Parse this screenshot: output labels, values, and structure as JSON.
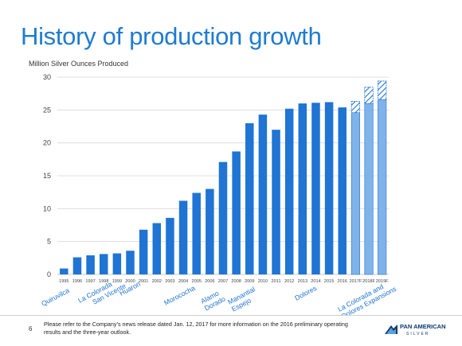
{
  "slide": {
    "title": "History of production growth",
    "page_number": "6",
    "footnote": "Please refer to the Company’s news release dated Jan. 12, 2017 for more information on the 2016 preliminary operating results and the three-year outlook."
  },
  "logo": {
    "name": "PAN AMERICAN",
    "sub": "SILVER",
    "mark_icon": "pan-american-logo-icon"
  },
  "chart_data": {
    "type": "bar",
    "ylabel": "Million Silver Ounces Produced",
    "ylim": [
      0,
      30
    ],
    "yticks": [
      0,
      5,
      10,
      15,
      20,
      25,
      30
    ],
    "grid": true,
    "categories": [
      "1995",
      "1996",
      "1997",
      "1998",
      "1999",
      "2000",
      "2001",
      "2002",
      "2003",
      "2004",
      "2005",
      "2006",
      "2007",
      "2008",
      "2009",
      "2010",
      "2011",
      "2012",
      "2013",
      "2014",
      "2015",
      "2016",
      "2017F",
      "2018F",
      "2019F"
    ],
    "values": [
      0.9,
      2.6,
      2.9,
      3.1,
      3.2,
      3.6,
      6.8,
      7.8,
      8.6,
      11.2,
      12.4,
      13.0,
      17.1,
      18.7,
      23.0,
      24.3,
      22.0,
      25.2,
      26.0,
      26.1,
      26.2,
      25.4,
      24.6,
      26.0,
      26.6
    ],
    "forecast_range_top": [
      null,
      null,
      null,
      null,
      null,
      null,
      null,
      null,
      null,
      null,
      null,
      null,
      null,
      null,
      null,
      null,
      null,
      null,
      null,
      null,
      null,
      null,
      26.3,
      28.5,
      29.4
    ],
    "forecast_categories": [
      "2017F",
      "2018F",
      "2019F"
    ],
    "colors": {
      "actual": "#1f74d4",
      "forecast": "#7fb3ea",
      "range_hatch": "#1f74d4"
    },
    "annotations": [
      {
        "text": "Quiruvilca",
        "year": "1996"
      },
      {
        "text": "La Colorada",
        "year": "1998"
      },
      {
        "text": "San Vicente",
        "year": "1999"
      },
      {
        "text": "Huaron",
        "year": "2000"
      },
      {
        "text": "Morococha",
        "year": "2004"
      },
      {
        "text": "Alamo Dorado",
        "year": "2006"
      },
      {
        "text": "Manantial Espejo",
        "year": "2008"
      },
      {
        "text": "Dolores",
        "year": "2012"
      },
      {
        "text": "La Colorada and Dolores Expansions",
        "year": "2018F"
      }
    ]
  }
}
